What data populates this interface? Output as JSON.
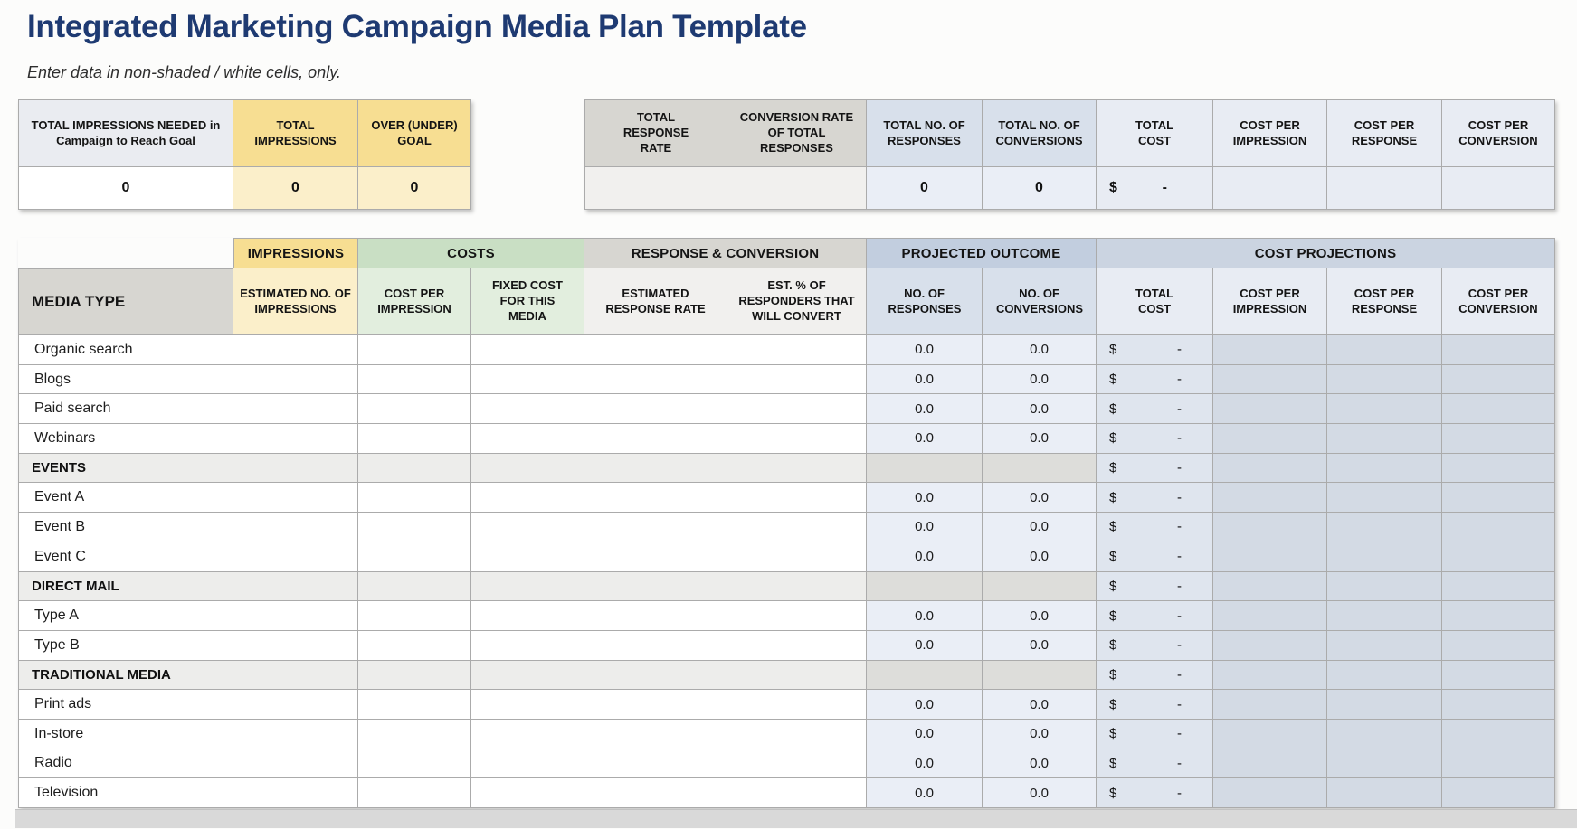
{
  "page": {
    "title": "Integrated Marketing Campaign Media Plan Template",
    "subtitle": "Enter data in non-shaded / white cells, only."
  },
  "colors": {
    "navy": "#1E3A72",
    "gold": "#F7DE92",
    "pale-gold": "#FBEFCA",
    "green": "#C9DFC4",
    "pale-green": "#E2EEDE",
    "gray-header": "#D7D6D1",
    "pale-gray": "#F1F0EE",
    "blue-header": "#C2CEDF",
    "lightblue-header": "#CBD4E1",
    "blue-sub": "#D8E0EB",
    "pale-blue": "#E8ECF3",
    "body-blue": "#EAEEF6",
    "cost-blue": "#DFE5EE",
    "proj-blue": "#D3DAE4",
    "section-gray": "#EDEDEB",
    "section-dark": "#DDDDDA",
    "lavender-gray": "#EAECF1",
    "grid-line": "#ABABAB",
    "strip": "#D9D9D9"
  },
  "impressions_summary": {
    "headers": [
      "TOTAL IMPRESSIONS NEEDED in Campaign to Reach Goal",
      "TOTAL IMPRESSIONS",
      "OVER (UNDER) GOAL"
    ],
    "values": [
      "0",
      "0",
      "0"
    ]
  },
  "totals_summary": {
    "headers": [
      "TOTAL RESPONSE RATE",
      "CONVERSION RATE OF TOTAL RESPONSES",
      "TOTAL NO. OF RESPONSES",
      "TOTAL NO. OF CONVERSIONS",
      "TOTAL COST",
      "COST PER IMPRESSION",
      "COST PER RESPONSE",
      "COST PER CONVERSION"
    ],
    "values": [
      "",
      "",
      "0",
      "0",
      "",
      "",
      "",
      ""
    ],
    "total_cost": {
      "currency": "$",
      "amount": "-"
    }
  },
  "media_table": {
    "group_headers": [
      "IMPRESSIONS",
      "COSTS",
      "RESPONSE & CONVERSION",
      "PROJECTED OUTCOME",
      "COST PROJECTIONS"
    ],
    "column_headers": [
      "MEDIA TYPE",
      "ESTIMATED NO. OF IMPRESSIONS",
      "COST PER IMPRESSION",
      "FIXED COST FOR THIS MEDIA",
      "ESTIMATED RESPONSE RATE",
      "EST. % OF RESPONDERS THAT WILL CONVERT",
      "NO. OF RESPONSES",
      "NO. OF CONVERSIONS",
      "TOTAL COST",
      "COST PER IMPRESSION",
      "COST PER RESPONSE",
      "COST PER CONVERSION"
    ],
    "rows": [
      {
        "type": "media",
        "label": "Organic search",
        "no_of_responses": "0.0",
        "no_of_conversions": "0.0",
        "total_cost": {
          "currency": "$",
          "amount": "-"
        }
      },
      {
        "type": "media",
        "label": "Blogs",
        "no_of_responses": "0.0",
        "no_of_conversions": "0.0",
        "total_cost": {
          "currency": "$",
          "amount": "-"
        }
      },
      {
        "type": "media",
        "label": "Paid search",
        "no_of_responses": "0.0",
        "no_of_conversions": "0.0",
        "total_cost": {
          "currency": "$",
          "amount": "-"
        }
      },
      {
        "type": "media",
        "label": "Webinars",
        "no_of_responses": "0.0",
        "no_of_conversions": "0.0",
        "total_cost": {
          "currency": "$",
          "amount": "-"
        }
      },
      {
        "type": "section",
        "label": "EVENTS",
        "no_of_responses": "",
        "no_of_conversions": "",
        "total_cost": {
          "currency": "$",
          "amount": "-"
        }
      },
      {
        "type": "media",
        "label": "Event A",
        "no_of_responses": "0.0",
        "no_of_conversions": "0.0",
        "total_cost": {
          "currency": "$",
          "amount": "-"
        }
      },
      {
        "type": "media",
        "label": "Event B",
        "no_of_responses": "0.0",
        "no_of_conversions": "0.0",
        "total_cost": {
          "currency": "$",
          "amount": "-"
        }
      },
      {
        "type": "media",
        "label": "Event C",
        "no_of_responses": "0.0",
        "no_of_conversions": "0.0",
        "total_cost": {
          "currency": "$",
          "amount": "-"
        }
      },
      {
        "type": "section",
        "label": "DIRECT MAIL",
        "no_of_responses": "",
        "no_of_conversions": "",
        "total_cost": {
          "currency": "$",
          "amount": "-"
        }
      },
      {
        "type": "media",
        "label": "Type A",
        "no_of_responses": "0.0",
        "no_of_conversions": "0.0",
        "total_cost": {
          "currency": "$",
          "amount": "-"
        }
      },
      {
        "type": "media",
        "label": "Type B",
        "no_of_responses": "0.0",
        "no_of_conversions": "0.0",
        "total_cost": {
          "currency": "$",
          "amount": "-"
        }
      },
      {
        "type": "section",
        "label": "TRADITIONAL MEDIA",
        "no_of_responses": "",
        "no_of_conversions": "",
        "total_cost": {
          "currency": "$",
          "amount": "-"
        }
      },
      {
        "type": "media",
        "label": "Print ads",
        "no_of_responses": "0.0",
        "no_of_conversions": "0.0",
        "total_cost": {
          "currency": "$",
          "amount": "-"
        }
      },
      {
        "type": "media",
        "label": "In-store",
        "no_of_responses": "0.0",
        "no_of_conversions": "0.0",
        "total_cost": {
          "currency": "$",
          "amount": "-"
        }
      },
      {
        "type": "media",
        "label": "Radio",
        "no_of_responses": "0.0",
        "no_of_conversions": "0.0",
        "total_cost": {
          "currency": "$",
          "amount": "-"
        }
      },
      {
        "type": "media",
        "label": "Television",
        "no_of_responses": "0.0",
        "no_of_conversions": "0.0",
        "total_cost": {
          "currency": "$",
          "amount": "-"
        }
      }
    ]
  }
}
